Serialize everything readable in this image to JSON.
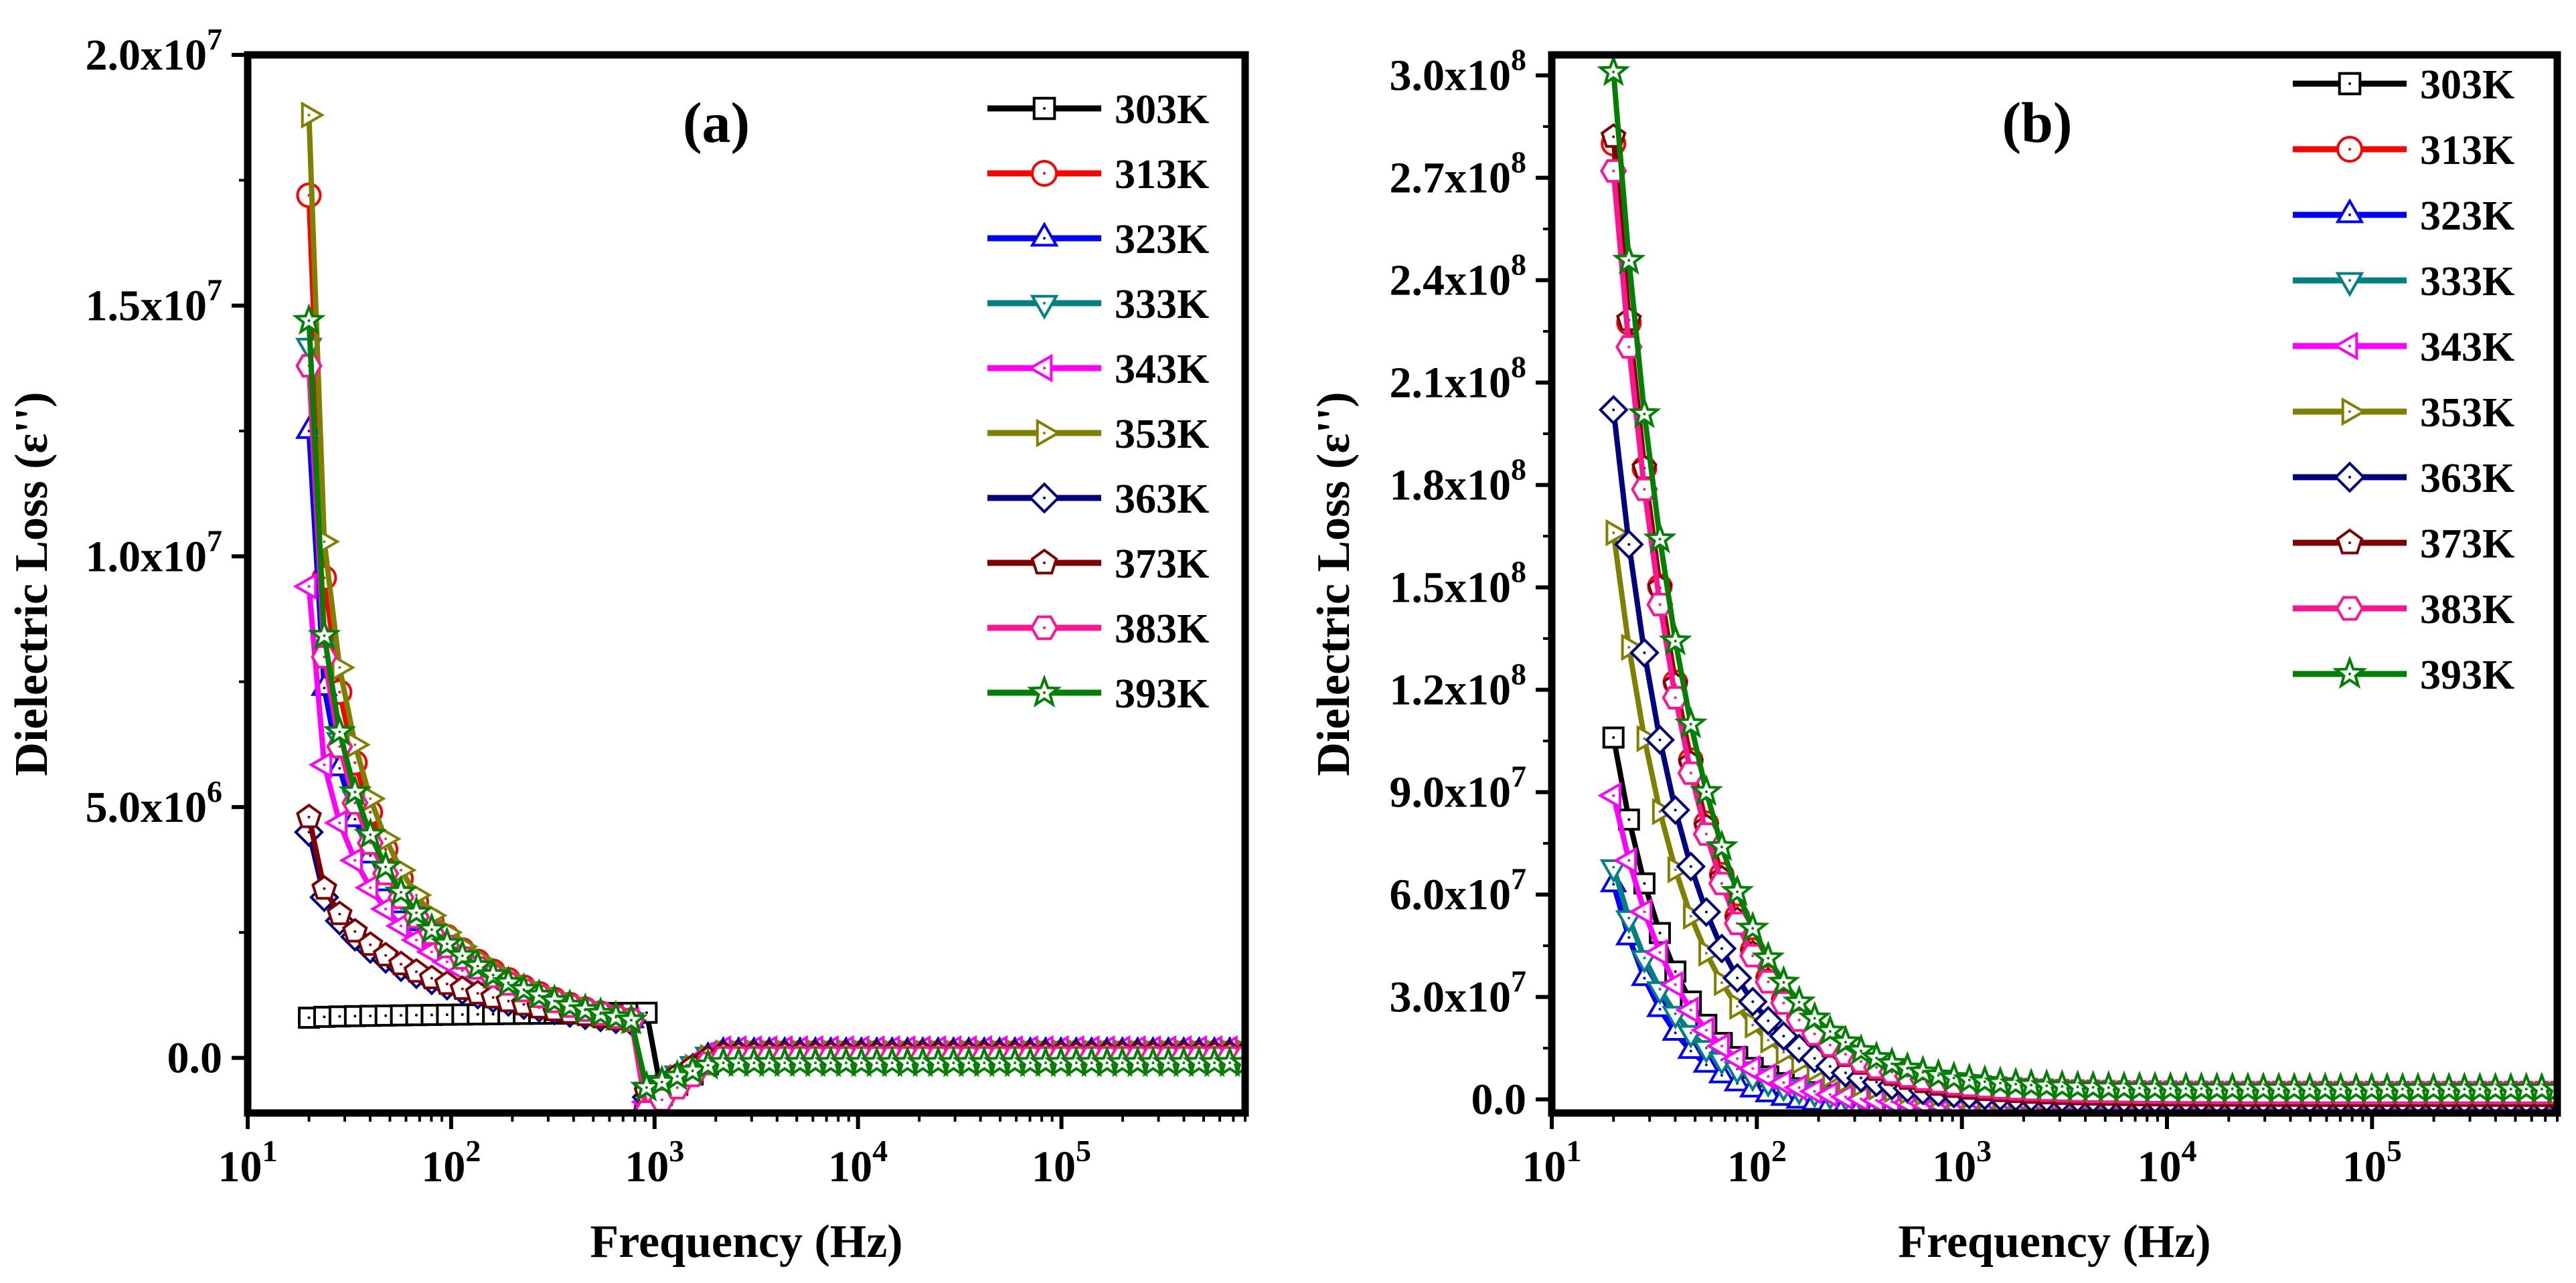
{
  "chart_data": [
    {
      "type": "line",
      "panel_label": "(a)",
      "xlabel": "Frequency (Hz)",
      "ylabel": "Dielectric Loss (ε'')",
      "xscale": "log",
      "xlim": [
        10,
        800000
      ],
      "ylim": [
        -1100000,
        20000000
      ],
      "x_ticks": [
        {
          "m": "10",
          "e": "1",
          "v": 10
        },
        {
          "m": "10",
          "e": "2",
          "v": 100
        },
        {
          "m": "10",
          "e": "3",
          "v": 1000
        },
        {
          "m": "10",
          "e": "4",
          "v": 10000
        },
        {
          "m": "10",
          "e": "5",
          "v": 100000
        }
      ],
      "y_ticks": [
        {
          "m": "0.0",
          "e": "",
          "v": 0
        },
        {
          "m": "5.0x10",
          "e": "6",
          "v": 5000000
        },
        {
          "m": "1.0x10",
          "e": "7",
          "v": 10000000
        },
        {
          "m": "1.5x10",
          "e": "7",
          "v": 15000000
        },
        {
          "m": "2.0x10",
          "e": "7",
          "v": 20000000
        }
      ],
      "legend_position": "top-right",
      "series": [
        {
          "name": "303K",
          "color": "#000000",
          "marker": "square",
          "start": 800000,
          "knee": 900000,
          "knee_f": 950,
          "high_value": 30000,
          "drop_min": -900000
        },
        {
          "name": "313K",
          "color": "#ff0000",
          "marker": "circle",
          "start": 17200000,
          "knee": 700000,
          "knee_f": 900,
          "high_value": 100000,
          "drop_min": -1000000
        },
        {
          "name": "323K",
          "color": "#0000ff",
          "marker": "triangle-up",
          "start": 12500000,
          "knee": 700000,
          "knee_f": 900,
          "high_value": 120000,
          "drop_min": -900000
        },
        {
          "name": "333K",
          "color": "#008080",
          "marker": "triangle-down",
          "start": 14200000,
          "knee": 700000,
          "knee_f": 900,
          "high_value": 150000,
          "drop_min": -700000
        },
        {
          "name": "343K",
          "color": "#ff00ff",
          "marker": "triangle-left",
          "start": 9400000,
          "knee": 700000,
          "knee_f": 900,
          "high_value": 180000,
          "drop_min": -900000
        },
        {
          "name": "353K",
          "color": "#808000",
          "marker": "triangle-right",
          "start": 18800000,
          "knee": 700000,
          "knee_f": 900,
          "high_value": 100000,
          "drop_min": -800000
        },
        {
          "name": "363K",
          "color": "#000080",
          "marker": "diamond",
          "start": 4500000,
          "knee": 700000,
          "knee_f": 900,
          "high_value": 80000,
          "drop_min": -800000
        },
        {
          "name": "373K",
          "color": "#800000",
          "marker": "pentagon",
          "start": 4800000,
          "knee": 700000,
          "knee_f": 900,
          "high_value": 60000,
          "drop_min": -700000
        },
        {
          "name": "383K",
          "color": "#ff1493",
          "marker": "hexagon",
          "start": 13800000,
          "knee": 700000,
          "knee_f": 900,
          "high_value": 0,
          "drop_min": -1100000
        },
        {
          "name": "393K",
          "color": "#008000",
          "marker": "star",
          "start": 14700000,
          "knee": 700000,
          "knee_f": 900,
          "high_value": -100000,
          "drop_min": -600000
        }
      ]
    },
    {
      "type": "line",
      "panel_label": "(b)",
      "xlabel": "Frequency (Hz)",
      "ylabel": "Dielectric Loss (ε'')",
      "xscale": "log",
      "xlim": [
        10,
        800000
      ],
      "ylim": [
        -4000000,
        306000000
      ],
      "x_ticks": [
        {
          "m": "10",
          "e": "1",
          "v": 10
        },
        {
          "m": "10",
          "e": "2",
          "v": 100
        },
        {
          "m": "10",
          "e": "3",
          "v": 1000
        },
        {
          "m": "10",
          "e": "4",
          "v": 10000
        },
        {
          "m": "10",
          "e": "5",
          "v": 100000
        }
      ],
      "y_ticks": [
        {
          "m": "0.0",
          "e": "",
          "v": 0
        },
        {
          "m": "3.0x10",
          "e": "7",
          "v": 30000000
        },
        {
          "m": "6.0x10",
          "e": "7",
          "v": 60000000
        },
        {
          "m": "9.0x10",
          "e": "7",
          "v": 90000000
        },
        {
          "m": "1.2x10",
          "e": "8",
          "v": 120000000
        },
        {
          "m": "1.5x10",
          "e": "8",
          "v": 150000000
        },
        {
          "m": "1.8x10",
          "e": "8",
          "v": 180000000
        },
        {
          "m": "2.1x10",
          "e": "8",
          "v": 210000000
        },
        {
          "m": "2.4x10",
          "e": "8",
          "v": 240000000
        },
        {
          "m": "2.7x10",
          "e": "8",
          "v": 270000000
        },
        {
          "m": "3.0x10",
          "e": "8",
          "v": 300000000
        }
      ],
      "legend_position": "top-right",
      "series": [
        {
          "name": "303K",
          "color": "#000000",
          "marker": "square",
          "start": 106000000,
          "decay": 1.45,
          "floor": -2000000
        },
        {
          "name": "313K",
          "color": "#ff0000",
          "marker": "circle",
          "start": 280000000,
          "decay": 1.2,
          "floor": 1000000
        },
        {
          "name": "323K",
          "color": "#0000ff",
          "marker": "triangle-up",
          "start": 63000000,
          "decay": 1.55,
          "floor": -3000000
        },
        {
          "name": "333K",
          "color": "#008080",
          "marker": "triangle-down",
          "start": 68000000,
          "decay": 1.4,
          "floor": -1000000
        },
        {
          "name": "343K",
          "color": "#ff00ff",
          "marker": "triangle-left",
          "start": 89000000,
          "decay": 1.35,
          "floor": -2000000
        },
        {
          "name": "353K",
          "color": "#808000",
          "marker": "triangle-right",
          "start": 166000000,
          "decay": 1.3,
          "floor": 0
        },
        {
          "name": "363K",
          "color": "#000080",
          "marker": "diamond",
          "start": 202000000,
          "decay": 1.25,
          "floor": 0
        },
        {
          "name": "373K",
          "color": "#800000",
          "marker": "pentagon",
          "start": 282000000,
          "decay": 1.22,
          "floor": 1000000
        },
        {
          "name": "383K",
          "color": "#ff1493",
          "marker": "hexagon",
          "start": 272000000,
          "decay": 1.22,
          "floor": 2000000
        },
        {
          "name": "393K",
          "color": "#008000",
          "marker": "star",
          "start": 301000000,
          "decay": 1.18,
          "floor": 3000000
        }
      ]
    }
  ]
}
